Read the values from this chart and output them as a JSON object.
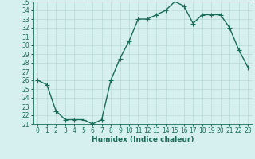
{
  "x": [
    0,
    1,
    2,
    3,
    4,
    5,
    6,
    7,
    8,
    9,
    10,
    11,
    12,
    13,
    14,
    15,
    16,
    17,
    18,
    19,
    20,
    21,
    22,
    23
  ],
  "y": [
    26.0,
    25.5,
    22.5,
    21.5,
    21.5,
    21.5,
    21.0,
    21.5,
    26.0,
    28.5,
    30.5,
    33.0,
    33.0,
    33.5,
    34.0,
    35.0,
    34.5,
    32.5,
    33.5,
    33.5,
    33.5,
    32.0,
    29.5,
    27.5
  ],
  "line_color": "#1a6b5a",
  "marker": "+",
  "markersize": 4,
  "linewidth": 1.0,
  "xlabel": "Humidex (Indice chaleur)",
  "ylim": [
    21,
    35
  ],
  "xlim": [
    -0.5,
    23.5
  ],
  "yticks": [
    21,
    22,
    23,
    24,
    25,
    26,
    27,
    28,
    29,
    30,
    31,
    32,
    33,
    34,
    35
  ],
  "xticks": [
    0,
    1,
    2,
    3,
    4,
    5,
    6,
    7,
    8,
    9,
    10,
    11,
    12,
    13,
    14,
    15,
    16,
    17,
    18,
    19,
    20,
    21,
    22,
    23
  ],
  "bg_color": "#d6f0ef",
  "grid_color": "#b8d8d5",
  "tick_color": "#1a6b5a",
  "label_color": "#1a6b5a",
  "xlabel_fontsize": 6.5,
  "tick_fontsize": 5.5
}
